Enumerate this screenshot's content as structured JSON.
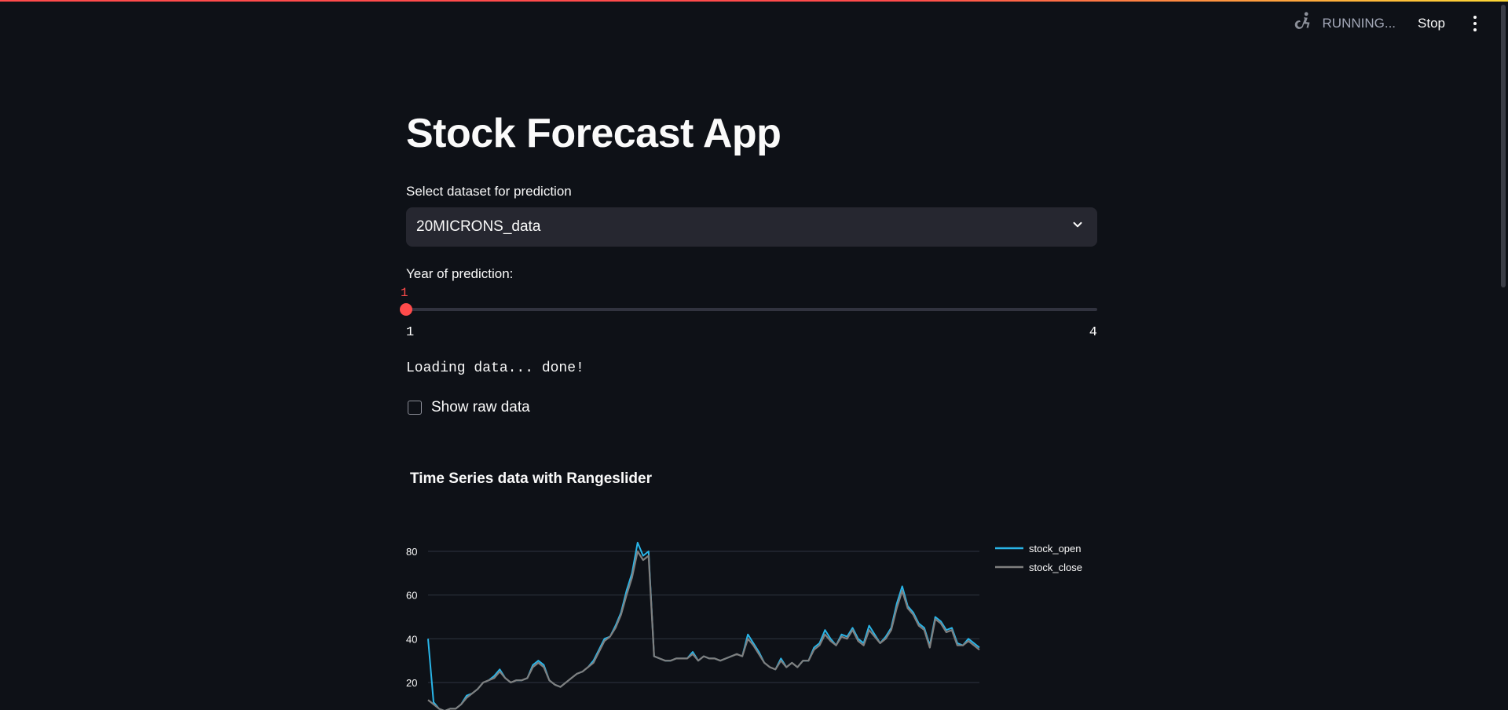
{
  "toolbar": {
    "status_text": "RUNNING...",
    "stop_label": "Stop",
    "running_icon": "running-person-icon",
    "menu_icon": "kebab-menu-icon"
  },
  "page": {
    "title": "Stock Forecast App"
  },
  "dataset_select": {
    "label": "Select dataset for prediction",
    "value": "20MICRONS_data"
  },
  "year_slider": {
    "label": "Year of prediction:",
    "value": "1",
    "min": "1",
    "max": "4"
  },
  "status": "Loading data... done!",
  "show_raw": {
    "label": "Show raw data",
    "checked": false
  },
  "colors": {
    "accent": "#ff4b4b",
    "open": "#29b5e8",
    "close": "#7f7f7f",
    "background": "#0e1117"
  },
  "chart_data": {
    "type": "line",
    "title": "Time Series data with Rangeslider",
    "ylim": [
      5,
      85
    ],
    "yticks": [
      "20",
      "40",
      "60",
      "80"
    ],
    "legend_position": "top-right",
    "grid": true,
    "series": [
      {
        "name": "stock_open",
        "values": [
          40,
          11,
          8,
          7,
          8,
          8,
          10,
          14,
          15,
          17,
          20,
          21,
          23,
          26,
          22,
          20,
          21,
          21,
          22,
          28,
          30,
          28,
          21,
          19,
          18,
          20,
          22,
          24,
          25,
          27,
          30,
          35,
          40,
          41,
          46,
          52,
          62,
          70,
          84,
          78,
          80,
          32,
          31,
          30,
          30,
          31,
          31,
          31,
          34,
          30,
          32,
          31,
          31,
          30,
          31,
          32,
          33,
          32,
          42,
          38,
          34,
          29,
          27,
          26,
          31,
          27,
          29,
          27,
          30,
          30,
          36,
          38,
          44,
          40,
          37,
          42,
          41,
          45,
          40,
          38,
          46,
          42,
          38,
          41,
          45,
          56,
          64,
          55,
          52,
          47,
          45,
          37,
          50,
          48,
          44,
          45,
          38,
          37,
          40,
          38,
          36
        ]
      },
      {
        "name": "stock_close",
        "values": [
          12,
          10,
          8,
          7,
          8,
          8,
          10,
          13,
          15,
          17,
          20,
          21,
          22,
          25,
          22,
          20,
          21,
          21,
          22,
          27,
          29,
          27,
          21,
          19,
          18,
          20,
          22,
          24,
          25,
          27,
          29,
          34,
          39,
          41,
          45,
          51,
          60,
          68,
          80,
          76,
          78,
          32,
          31,
          30,
          30,
          31,
          31,
          31,
          33,
          30,
          32,
          31,
          31,
          30,
          31,
          32,
          33,
          32,
          40,
          37,
          33,
          29,
          27,
          26,
          30,
          27,
          29,
          27,
          30,
          30,
          35,
          37,
          42,
          39,
          37,
          41,
          40,
          44,
          39,
          37,
          44,
          41,
          38,
          40,
          44,
          54,
          62,
          54,
          51,
          46,
          44,
          36,
          49,
          47,
          43,
          44,
          37,
          37,
          39,
          37,
          35
        ]
      }
    ]
  }
}
